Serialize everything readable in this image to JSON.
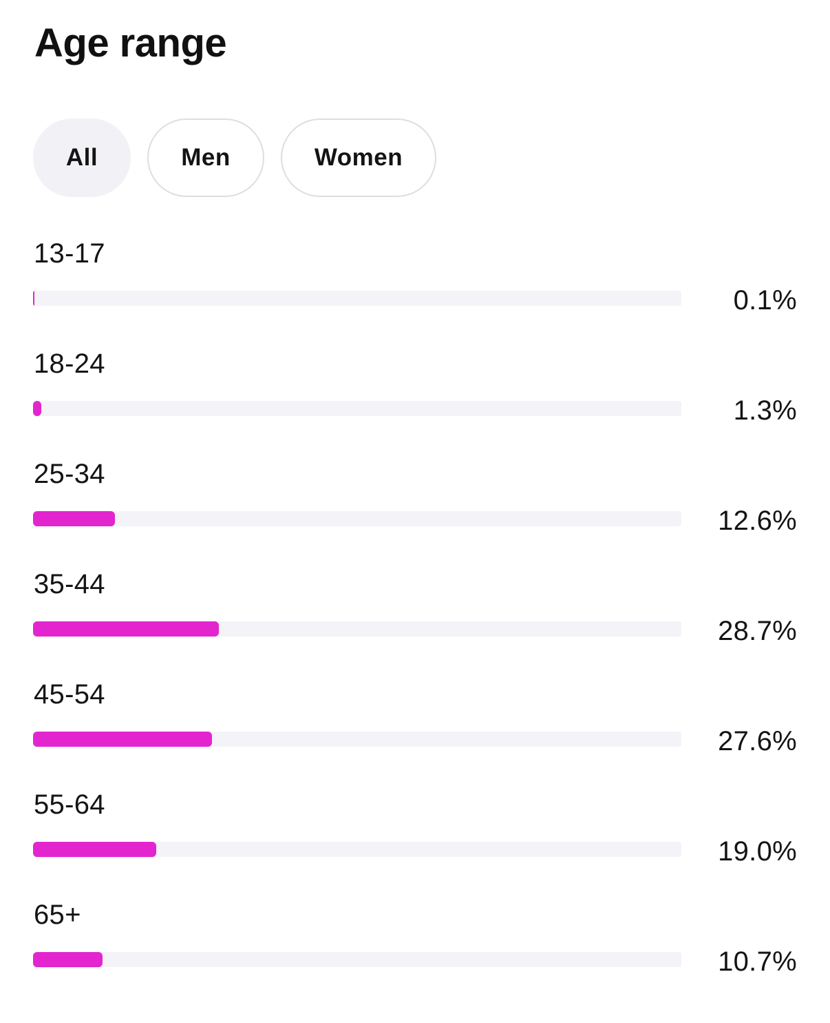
{
  "header": {
    "title": "Age range"
  },
  "filters": {
    "selected": "All",
    "options": [
      {
        "label": "All"
      },
      {
        "label": "Men"
      },
      {
        "label": "Women"
      }
    ]
  },
  "colors": {
    "bar_fill": "#e325cf",
    "track": "#f4f3f8",
    "selected_chip": "#f2f2f6"
  },
  "age_ranges": [
    {
      "label": "13-17",
      "value_text": "0.1%",
      "percent": 0.1
    },
    {
      "label": "18-24",
      "value_text": "1.3%",
      "percent": 1.3
    },
    {
      "label": "25-34",
      "value_text": "12.6%",
      "percent": 12.6
    },
    {
      "label": "35-44",
      "value_text": "28.7%",
      "percent": 28.7
    },
    {
      "label": "45-54",
      "value_text": "27.6%",
      "percent": 27.6
    },
    {
      "label": "55-64",
      "value_text": "19.0%",
      "percent": 19.0
    },
    {
      "label": "65+",
      "value_text": "10.7%",
      "percent": 10.7
    }
  ]
}
